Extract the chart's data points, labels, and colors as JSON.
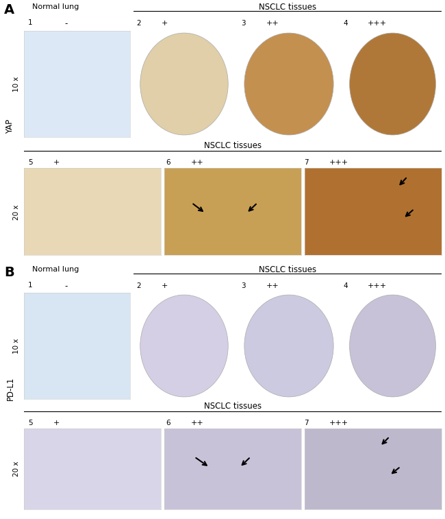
{
  "background": "#ffffff",
  "label_A": "A",
  "label_B": "B",
  "label_normal_lung": "Normal lung",
  "label_nsclc": "NSCLC tissues",
  "label_yap": "YAP",
  "label_pdl1": "PD-L1",
  "label_10x": "10 x",
  "label_20x": "20 x",
  "A_row1": {
    "img1_color": "#dce8f5",
    "img2_color": "#e0cfa8",
    "img3_color": "#c49050",
    "img4_color": "#b07838"
  },
  "A_row2": {
    "img5_color": "#e8d8b5",
    "img6_color": "#c8a055",
    "img7_color": "#b07030"
  },
  "B_row1": {
    "img1_color": "#d8e5f2",
    "img2_color": "#d5cfe5",
    "img3_color": "#cccae0",
    "img4_color": "#c8c2d8"
  },
  "B_row2": {
    "img5_color": "#d8d5e8",
    "img6_color": "#c8c2d8",
    "img7_color": "#bdb8cc"
  }
}
